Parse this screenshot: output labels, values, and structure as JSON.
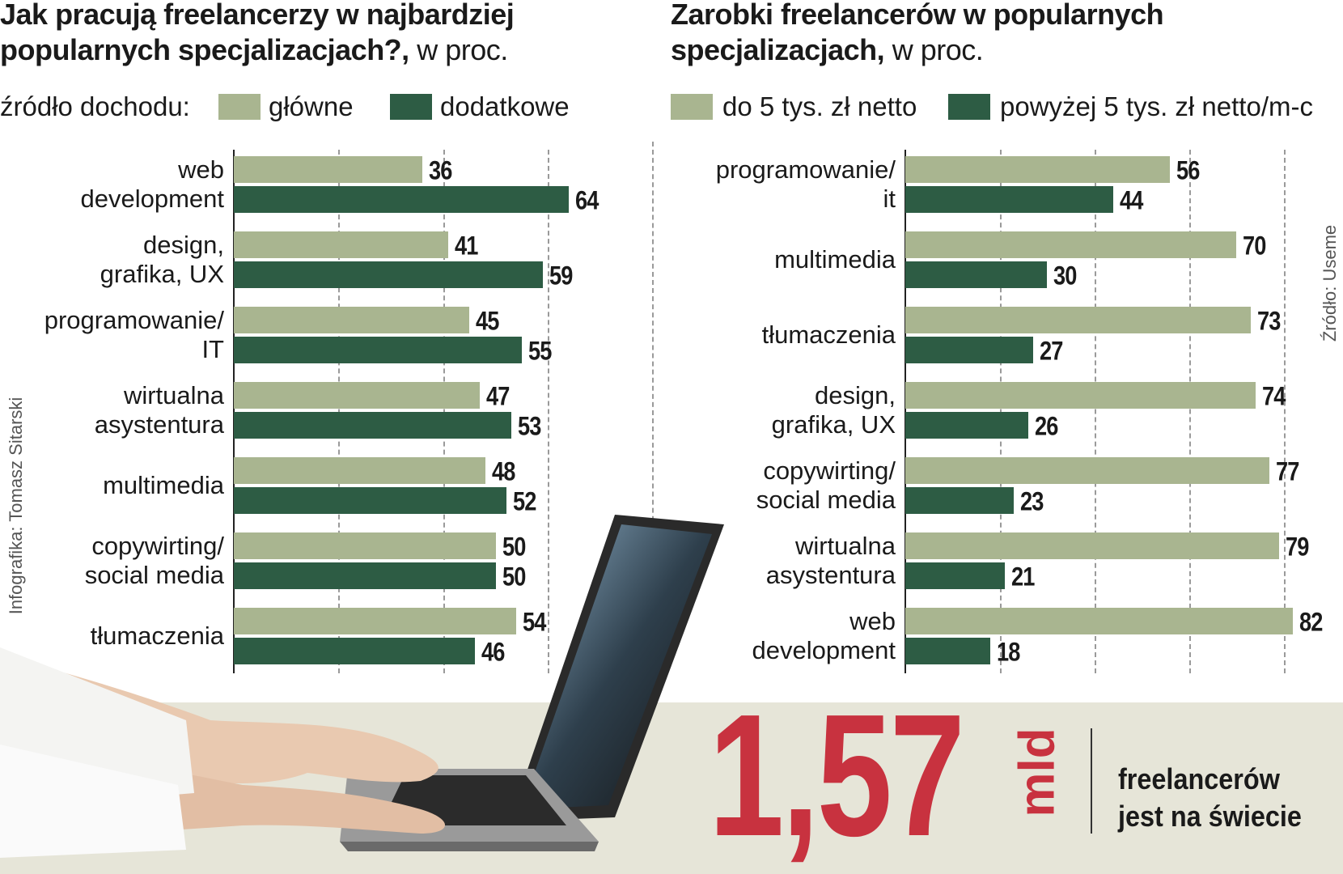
{
  "chart_data": [
    {
      "type": "bar",
      "orientation": "horizontal",
      "title": "Jak pracują freelancerzy w najbardziej popularnych specjalizacjach?,",
      "unit": "w proc.",
      "legend_title": "źródło dochodu:",
      "categories": [
        "web\ndevelopment",
        "design,\ngrafika, UX",
        "programowanie/\nIT",
        "wirtualna\nasystentura",
        "multimedia",
        "copywirting/\nsocial media",
        "tłumaczenia"
      ],
      "series": [
        {
          "name": "główne",
          "color": "#a9b590",
          "values": [
            36,
            41,
            45,
            47,
            48,
            50,
            54
          ]
        },
        {
          "name": "dodatkowe",
          "color": "#2d5c44",
          "values": [
            64,
            59,
            55,
            53,
            52,
            50,
            46
          ]
        }
      ],
      "xlim": [
        0,
        70
      ],
      "xticks": [
        0,
        20,
        40,
        60
      ],
      "grid": true
    },
    {
      "type": "bar",
      "orientation": "horizontal",
      "title": "Zarobki freelancerów w popularnych specjalizacjach,",
      "unit": "w proc.",
      "categories": [
        "programowanie/\nit",
        "multimedia",
        "tłumaczenia",
        "design,\ngrafika, UX",
        "copywirting/\nsocial media",
        "wirtualna\nasystentura",
        "web\ndevelopment"
      ],
      "series": [
        {
          "name": "do 5 tys. zł netto",
          "color": "#a9b590",
          "values": [
            56,
            70,
            73,
            74,
            77,
            79,
            82
          ]
        },
        {
          "name": "powyżej 5 tys. zł netto/m-c",
          "color": "#2d5c44",
          "values": [
            44,
            30,
            27,
            26,
            23,
            21,
            18
          ]
        }
      ],
      "xlim": [
        0,
        85
      ],
      "xticks": [
        0,
        20,
        40,
        60,
        80
      ],
      "grid": true
    }
  ],
  "stat": {
    "value": "1,57",
    "unit": "mld",
    "caption": "freelancerów\njest na świecie"
  },
  "credits": {
    "graphics": "Infografika: Tomasz Sitarski",
    "source": "Źródło: Useme"
  }
}
